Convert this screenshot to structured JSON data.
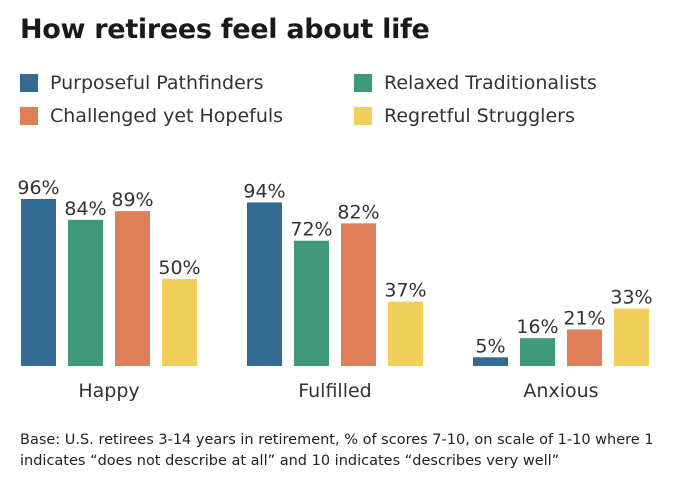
{
  "title": "How retirees feel about life",
  "chart_data": {
    "type": "bar",
    "categories": [
      "Happy",
      "Fulfilled",
      "Anxious"
    ],
    "series": [
      {
        "name": "Purposeful Pathfinders",
        "color": "#336a91",
        "values": [
          96,
          94,
          5
        ]
      },
      {
        "name": "Relaxed Traditionalists",
        "color": "#3f9a7c",
        "values": [
          84,
          72,
          16
        ]
      },
      {
        "name": "Challenged yet Hopefuls",
        "color": "#df7f5a",
        "values": [
          89,
          82,
          21
        ]
      },
      {
        "name": "Regretful Strugglers",
        "color": "#f2cf5b",
        "values": [
          50,
          37,
          33
        ]
      }
    ],
    "value_suffix": "%",
    "ylim": [
      0,
      100
    ],
    "grid": false,
    "legend": "top"
  },
  "footnote": "Base: U.S. retirees 3-14 years in retirement, % of scores 7-10, on scale of 1-10 where 1 indicates “does not describe at all” and 10 indicates “describes very well”"
}
